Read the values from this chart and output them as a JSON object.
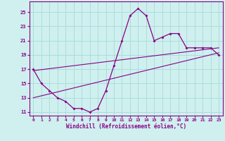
{
  "xlabel": "Windchill (Refroidissement éolien,°C)",
  "bg_color": "#cff0ee",
  "line_color": "#880088",
  "grid_color": "#aadddd",
  "hours": [
    0,
    1,
    2,
    3,
    4,
    5,
    6,
    7,
    8,
    9,
    10,
    11,
    12,
    13,
    14,
    15,
    16,
    17,
    18,
    19,
    20,
    21,
    22,
    23
  ],
  "main_curve": [
    17,
    15,
    14,
    13,
    12.5,
    11.5,
    11.5,
    11,
    11.5,
    14,
    17.5,
    21,
    24.5,
    25.5,
    24.5,
    21,
    21.5,
    22,
    22,
    20,
    20,
    20,
    20,
    19
  ],
  "line1_x": [
    0,
    23
  ],
  "line1_y": [
    13.0,
    19.3
  ],
  "line2_x": [
    0,
    23
  ],
  "line2_y": [
    16.8,
    20.0
  ],
  "ylim": [
    10.5,
    26.5
  ],
  "xlim": [
    -0.5,
    23.5
  ],
  "yticks": [
    11,
    13,
    15,
    17,
    19,
    21,
    23,
    25
  ],
  "xticks": [
    0,
    1,
    2,
    3,
    4,
    5,
    6,
    7,
    8,
    9,
    10,
    11,
    12,
    13,
    14,
    15,
    16,
    17,
    18,
    19,
    20,
    21,
    22,
    23
  ]
}
